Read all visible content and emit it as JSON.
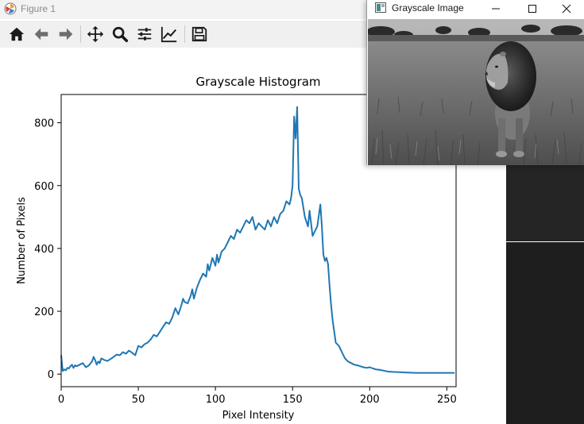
{
  "figure_window": {
    "title": "Figure 1",
    "toolbar": [
      {
        "name": "home-button",
        "icon": "home-icon"
      },
      {
        "name": "back-button",
        "icon": "arrow-left-icon"
      },
      {
        "name": "forward-button",
        "icon": "arrow-right-icon"
      },
      {
        "name": "pan-button",
        "icon": "move-icon"
      },
      {
        "name": "zoom-button",
        "icon": "magnifier-icon"
      },
      {
        "name": "subplots-button",
        "icon": "sliders-icon"
      },
      {
        "name": "edit-axis-button",
        "icon": "line-chart-icon"
      },
      {
        "name": "save-button",
        "icon": "floppy-disk-icon"
      }
    ]
  },
  "image_window": {
    "title": "Grayscale Image",
    "image_description": "grayscale photo of a lion in grassland",
    "controls": [
      "minimize-icon",
      "maximize-icon",
      "close-icon"
    ]
  },
  "chart_data": {
    "type": "line",
    "title": "Grayscale Histogram",
    "xlabel": "Pixel Intensity",
    "ylabel": "Number of Pixels",
    "xlim": [
      0,
      256
    ],
    "ylim": [
      -40,
      890
    ],
    "xticks": [
      0,
      50,
      100,
      150,
      200,
      250
    ],
    "yticks": [
      0,
      200,
      400,
      600,
      800
    ],
    "grid": false,
    "line_color": "#1f77b4",
    "series": [
      {
        "x": [
          0,
          1,
          2,
          3,
          4,
          5,
          6,
          7,
          8,
          9,
          10,
          12,
          14,
          16,
          18,
          20,
          21,
          22,
          23,
          24,
          25,
          26,
          28,
          30,
          32,
          34,
          36,
          38,
          40,
          42,
          44,
          46,
          48,
          50,
          52,
          54,
          56,
          58,
          60,
          62,
          64,
          66,
          68,
          70,
          72,
          74,
          76,
          78,
          79,
          80,
          82,
          84,
          85,
          86,
          88,
          90,
          92,
          94,
          95,
          96,
          98,
          100,
          101,
          102,
          104,
          106,
          108,
          110,
          112,
          114,
          116,
          118,
          120,
          122,
          124,
          126,
          128,
          130,
          132,
          134,
          136,
          138,
          140,
          142,
          144,
          146,
          148,
          149,
          150,
          151,
          152,
          153,
          154,
          155,
          156,
          158,
          160,
          161,
          162,
          163,
          164,
          166,
          168,
          169,
          170,
          171,
          172,
          173,
          174,
          175,
          176,
          178,
          180,
          181,
          182,
          184,
          186,
          188,
          190,
          192,
          194,
          196,
          198,
          200,
          202,
          204,
          206,
          208,
          210,
          212,
          215,
          220,
          225,
          230,
          235,
          240,
          245,
          250,
          255
        ],
        "y": [
          60,
          10,
          15,
          12,
          20,
          18,
          25,
          30,
          20,
          28,
          25,
          30,
          35,
          22,
          28,
          40,
          55,
          45,
          30,
          40,
          35,
          50,
          45,
          42,
          48,
          55,
          62,
          60,
          70,
          65,
          75,
          68,
          60,
          90,
          85,
          95,
          100,
          110,
          125,
          120,
          135,
          150,
          165,
          160,
          180,
          210,
          190,
          220,
          240,
          230,
          225,
          250,
          270,
          240,
          275,
          300,
          320,
          310,
          350,
          330,
          370,
          345,
          380,
          355,
          390,
          400,
          420,
          440,
          430,
          460,
          450,
          470,
          490,
          480,
          500,
          460,
          480,
          470,
          460,
          490,
          470,
          500,
          480,
          510,
          520,
          550,
          540,
          560,
          600,
          820,
          750,
          850,
          590,
          570,
          560,
          500,
          470,
          520,
          480,
          440,
          450,
          470,
          540,
          470,
          380,
          360,
          370,
          350,
          280,
          220,
          170,
          100,
          90,
          80,
          70,
          50,
          40,
          35,
          30,
          28,
          25,
          22,
          20,
          22,
          18,
          15,
          14,
          12,
          10,
          8,
          7,
          6,
          5,
          4,
          4,
          4,
          4,
          4,
          4
        ]
      }
    ]
  }
}
